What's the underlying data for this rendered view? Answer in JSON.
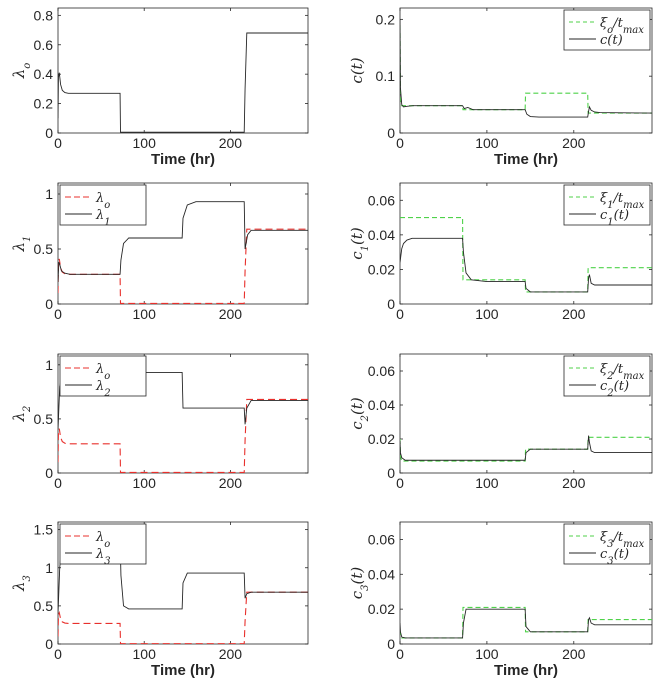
{
  "colors": {
    "black_line": "#262626",
    "red_dashed": "#e8302c",
    "green_dashed": "#4fd24a",
    "axis": "#262626"
  },
  "chart_data": [
    {
      "type": "line",
      "xlabel": "Time (hr)",
      "ylabel": "λo",
      "xlim": [
        0,
        290
      ],
      "ylim": [
        0,
        0.85
      ],
      "xticks": [
        0,
        100,
        200
      ],
      "yticks": [
        0,
        0.2,
        0.4,
        0.6,
        0.8
      ],
      "ytick_labels": [
        "0",
        "0.2",
        "0.4",
        "0.6",
        "0.8"
      ],
      "series": [
        {
          "color": "black",
          "dash": false,
          "x": [
            0,
            0.5,
            1.5,
            3,
            5,
            8,
            12,
            18,
            30,
            72,
            72.5,
            216,
            217,
            219,
            290
          ],
          "y": [
            0.1,
            0.38,
            0.41,
            0.33,
            0.29,
            0.275,
            0.27,
            0.27,
            0.27,
            0.27,
            0.005,
            0.005,
            0.3,
            0.68,
            0.68
          ]
        }
      ],
      "legend": null
    },
    {
      "type": "line",
      "xlabel": "Time (hr)",
      "ylabel": "c(t)",
      "xlim": [
        0,
        290
      ],
      "ylim": [
        0,
        0.22
      ],
      "xticks": [
        0,
        100,
        200
      ],
      "yticks": [
        0,
        0.1,
        0.2
      ],
      "ytick_labels": [
        "0",
        "0.1",
        "0.2"
      ],
      "series": [
        {
          "name": "ξo/tmax",
          "color": "green",
          "dash": true,
          "x": [
            0,
            0.5,
            2,
            72,
            72.5,
            144,
            144.5,
            216,
            216.5,
            290
          ],
          "y": [
            0.19,
            0.06,
            0.048,
            0.048,
            0.041,
            0.041,
            0.07,
            0.07,
            0.035,
            0.035
          ]
        },
        {
          "name": "c(t)",
          "color": "black",
          "dash": false,
          "x": [
            0,
            0.5,
            2,
            4,
            8,
            15,
            70,
            72,
            74,
            78,
            84,
            144,
            146,
            150,
            160,
            216,
            217,
            218,
            220,
            224,
            230,
            290
          ],
          "y": [
            0.2,
            0.08,
            0.05,
            0.046,
            0.047,
            0.048,
            0.048,
            0.048,
            0.043,
            0.045,
            0.041,
            0.041,
            0.033,
            0.029,
            0.028,
            0.028,
            0.038,
            0.046,
            0.04,
            0.037,
            0.036,
            0.035
          ]
        }
      ],
      "legend": {
        "position": "top-right",
        "entries": [
          {
            "label": "ξo/tmax",
            "style": "green-dashed"
          },
          {
            "label": "c(t)",
            "style": "black-solid"
          }
        ]
      }
    },
    {
      "type": "line",
      "xlabel": "",
      "ylabel": "λ1",
      "xlim": [
        0,
        290
      ],
      "ylim": [
        0,
        1.1
      ],
      "xticks": [
        0,
        100,
        200
      ],
      "yticks": [
        0,
        0.5,
        1
      ],
      "ytick_labels": [
        "0",
        "0.5",
        "1"
      ],
      "series": [
        {
          "name": "λo",
          "color": "red",
          "dash": true,
          "x": [
            0,
            0.5,
            1.5,
            3,
            5,
            8,
            12,
            18,
            30,
            72,
            72.5,
            216,
            217,
            219,
            290
          ],
          "y": [
            0.1,
            0.38,
            0.41,
            0.33,
            0.29,
            0.275,
            0.27,
            0.27,
            0.27,
            0.27,
            0.005,
            0.005,
            0.3,
            0.68,
            0.68
          ]
        },
        {
          "name": "λ1",
          "color": "black",
          "dash": false,
          "x": [
            0,
            1,
            2,
            4,
            8,
            14,
            72,
            73,
            76,
            82,
            100,
            144,
            145,
            150,
            160,
            216,
            217,
            220,
            224,
            290
          ],
          "y": [
            0.2,
            0.38,
            0.36,
            0.3,
            0.28,
            0.27,
            0.27,
            0.4,
            0.55,
            0.6,
            0.6,
            0.6,
            0.78,
            0.9,
            0.93,
            0.93,
            0.5,
            0.63,
            0.67,
            0.67
          ]
        }
      ],
      "legend": {
        "position": "top-left",
        "entries": [
          {
            "label": "λo",
            "style": "red-dashed"
          },
          {
            "label": "λ1",
            "style": "black-solid"
          }
        ]
      }
    },
    {
      "type": "line",
      "xlabel": "",
      "ylabel": "c1(t)",
      "xlim": [
        0,
        290
      ],
      "ylim": [
        0,
        0.07
      ],
      "xticks": [
        0,
        100,
        200
      ],
      "yticks": [
        0,
        0.02,
        0.04,
        0.06
      ],
      "ytick_labels": [
        "0",
        "0.02",
        "0.04",
        "0.06"
      ],
      "series": [
        {
          "name": "ξ1/tmax",
          "color": "green",
          "dash": true,
          "x": [
            0,
            72,
            72.5,
            144,
            144.5,
            216,
            216.5,
            290
          ],
          "y": [
            0.05,
            0.05,
            0.014,
            0.014,
            0.007,
            0.007,
            0.021,
            0.021
          ]
        },
        {
          "name": "c1(t)",
          "color": "black",
          "dash": false,
          "x": [
            0,
            1,
            2,
            4,
            8,
            14,
            72,
            73,
            76,
            82,
            100,
            144,
            145,
            150,
            216,
            217,
            218,
            220,
            224,
            290
          ],
          "y": [
            0.024,
            0.028,
            0.032,
            0.035,
            0.037,
            0.038,
            0.038,
            0.03,
            0.018,
            0.014,
            0.013,
            0.013,
            0.009,
            0.007,
            0.007,
            0.015,
            0.017,
            0.012,
            0.011,
            0.011
          ]
        }
      ],
      "legend": {
        "position": "top-right",
        "entries": [
          {
            "label": "ξ1/tmax",
            "style": "green-dashed"
          },
          {
            "label": "c1(t)",
            "style": "black-solid"
          }
        ]
      }
    },
    {
      "type": "line",
      "xlabel": "",
      "ylabel": "λ2",
      "xlim": [
        0,
        290
      ],
      "ylim": [
        0,
        1.1
      ],
      "xticks": [
        0,
        100,
        200
      ],
      "yticks": [
        0,
        0.5,
        1
      ],
      "ytick_labels": [
        "0",
        "0.5",
        "1"
      ],
      "series": [
        {
          "name": "λo",
          "color": "red",
          "dash": true,
          "x": [
            0,
            0.5,
            1.5,
            3,
            5,
            8,
            12,
            18,
            30,
            72,
            72.5,
            216,
            217,
            219,
            290
          ],
          "y": [
            0.1,
            0.38,
            0.41,
            0.33,
            0.29,
            0.275,
            0.27,
            0.27,
            0.27,
            0.27,
            0.005,
            0.005,
            0.3,
            0.68,
            0.68
          ]
        },
        {
          "name": "λ2",
          "color": "black",
          "dash": false,
          "x": [
            0,
            1,
            2,
            4,
            8,
            14,
            72,
            144,
            145,
            150,
            216,
            217,
            219,
            224,
            290
          ],
          "y": [
            0.4,
            0.6,
            0.8,
            0.88,
            0.92,
            0.93,
            0.93,
            0.93,
            0.6,
            0.6,
            0.6,
            0.45,
            0.6,
            0.67,
            0.67
          ]
        }
      ],
      "legend": {
        "position": "top-left",
        "entries": [
          {
            "label": "λo",
            "style": "red-dashed"
          },
          {
            "label": "λ2",
            "style": "black-solid"
          }
        ]
      }
    },
    {
      "type": "line",
      "xlabel": "",
      "ylabel": "c2(t)",
      "xlim": [
        0,
        290
      ],
      "ylim": [
        0,
        0.07
      ],
      "xticks": [
        0,
        100,
        200
      ],
      "yticks": [
        0,
        0.02,
        0.04,
        0.06
      ],
      "ytick_labels": [
        "0",
        "0.02",
        "0.04",
        "0.06"
      ],
      "series": [
        {
          "name": "ξ2/tmax",
          "color": "green",
          "dash": true,
          "x": [
            0,
            0.5,
            2,
            144,
            144.5,
            216,
            216.5,
            290
          ],
          "y": [
            0.02,
            0.01,
            0.007,
            0.007,
            0.014,
            0.014,
            0.021,
            0.021
          ]
        },
        {
          "name": "c2(t)",
          "color": "black",
          "dash": false,
          "x": [
            0,
            0.5,
            2,
            6,
            144,
            145,
            150,
            216,
            217,
            218,
            220,
            224,
            290
          ],
          "y": [
            0.019,
            0.012,
            0.009,
            0.0075,
            0.0075,
            0.012,
            0.014,
            0.014,
            0.022,
            0.018,
            0.013,
            0.012,
            0.012
          ]
        }
      ],
      "legend": {
        "position": "top-right",
        "entries": [
          {
            "label": "ξ2/tmax",
            "style": "green-dashed"
          },
          {
            "label": "c2(t)",
            "style": "black-solid"
          }
        ]
      }
    },
    {
      "type": "line",
      "xlabel": "Time (hr)",
      "ylabel": "λ3",
      "xlim": [
        0,
        290
      ],
      "ylim": [
        0,
        1.6
      ],
      "xticks": [
        0,
        100,
        200
      ],
      "yticks": [
        0,
        0.5,
        1,
        1.5
      ],
      "ytick_labels": [
        "0",
        "0.5",
        "1",
        "1.5"
      ],
      "series": [
        {
          "name": "λo",
          "color": "red",
          "dash": true,
          "x": [
            0,
            0.5,
            1.5,
            3,
            5,
            8,
            12,
            18,
            30,
            72,
            72.5,
            216,
            217,
            219,
            290
          ],
          "y": [
            0.1,
            0.38,
            0.41,
            0.33,
            0.29,
            0.275,
            0.27,
            0.27,
            0.27,
            0.27,
            0.005,
            0.005,
            0.3,
            0.68,
            0.68
          ]
        },
        {
          "name": "λ3",
          "color": "black",
          "dash": false,
          "x": [
            0,
            2,
            4,
            8,
            14,
            72,
            73,
            76,
            82,
            144,
            145,
            150,
            216,
            217,
            219,
            224,
            290
          ],
          "y": [
            0.4,
            1.0,
            1.25,
            1.38,
            1.4,
            1.4,
            0.9,
            0.5,
            0.46,
            0.46,
            0.8,
            0.93,
            0.93,
            0.6,
            0.66,
            0.68,
            0.68
          ]
        }
      ],
      "legend": {
        "position": "top-left",
        "entries": [
          {
            "label": "λo",
            "style": "red-dashed"
          },
          {
            "label": "λ3",
            "style": "black-solid"
          }
        ]
      }
    },
    {
      "type": "line",
      "xlabel": "Time (hr)",
      "ylabel": "c3(t)",
      "xlim": [
        0,
        290
      ],
      "ylim": [
        0,
        0.07
      ],
      "xticks": [
        0,
        100,
        200
      ],
      "yticks": [
        0,
        0.02,
        0.04,
        0.06
      ],
      "ytick_labels": [
        "0",
        "0.02",
        "0.04",
        "0.06"
      ],
      "series": [
        {
          "name": "ξ3/tmax",
          "color": "green",
          "dash": true,
          "x": [
            0,
            0.5,
            2,
            72,
            72.5,
            144,
            144.5,
            216,
            216.5,
            290
          ],
          "y": [
            0.008,
            0.005,
            0.0035,
            0.0035,
            0.021,
            0.021,
            0.007,
            0.007,
            0.014,
            0.014
          ]
        },
        {
          "name": "c3(t)",
          "color": "black",
          "dash": false,
          "x": [
            0,
            0.5,
            2,
            6,
            72,
            73,
            76,
            144,
            145,
            150,
            216,
            217,
            218,
            220,
            224,
            290
          ],
          "y": [
            0.012,
            0.007,
            0.004,
            0.0035,
            0.0035,
            0.012,
            0.02,
            0.02,
            0.01,
            0.007,
            0.007,
            0.014,
            0.015,
            0.012,
            0.011,
            0.011
          ]
        }
      ],
      "legend": {
        "position": "top-right",
        "entries": [
          {
            "label": "ξ3/tmax",
            "style": "green-dashed"
          },
          {
            "label": "c3(t)",
            "style": "black-solid"
          }
        ]
      }
    }
  ]
}
